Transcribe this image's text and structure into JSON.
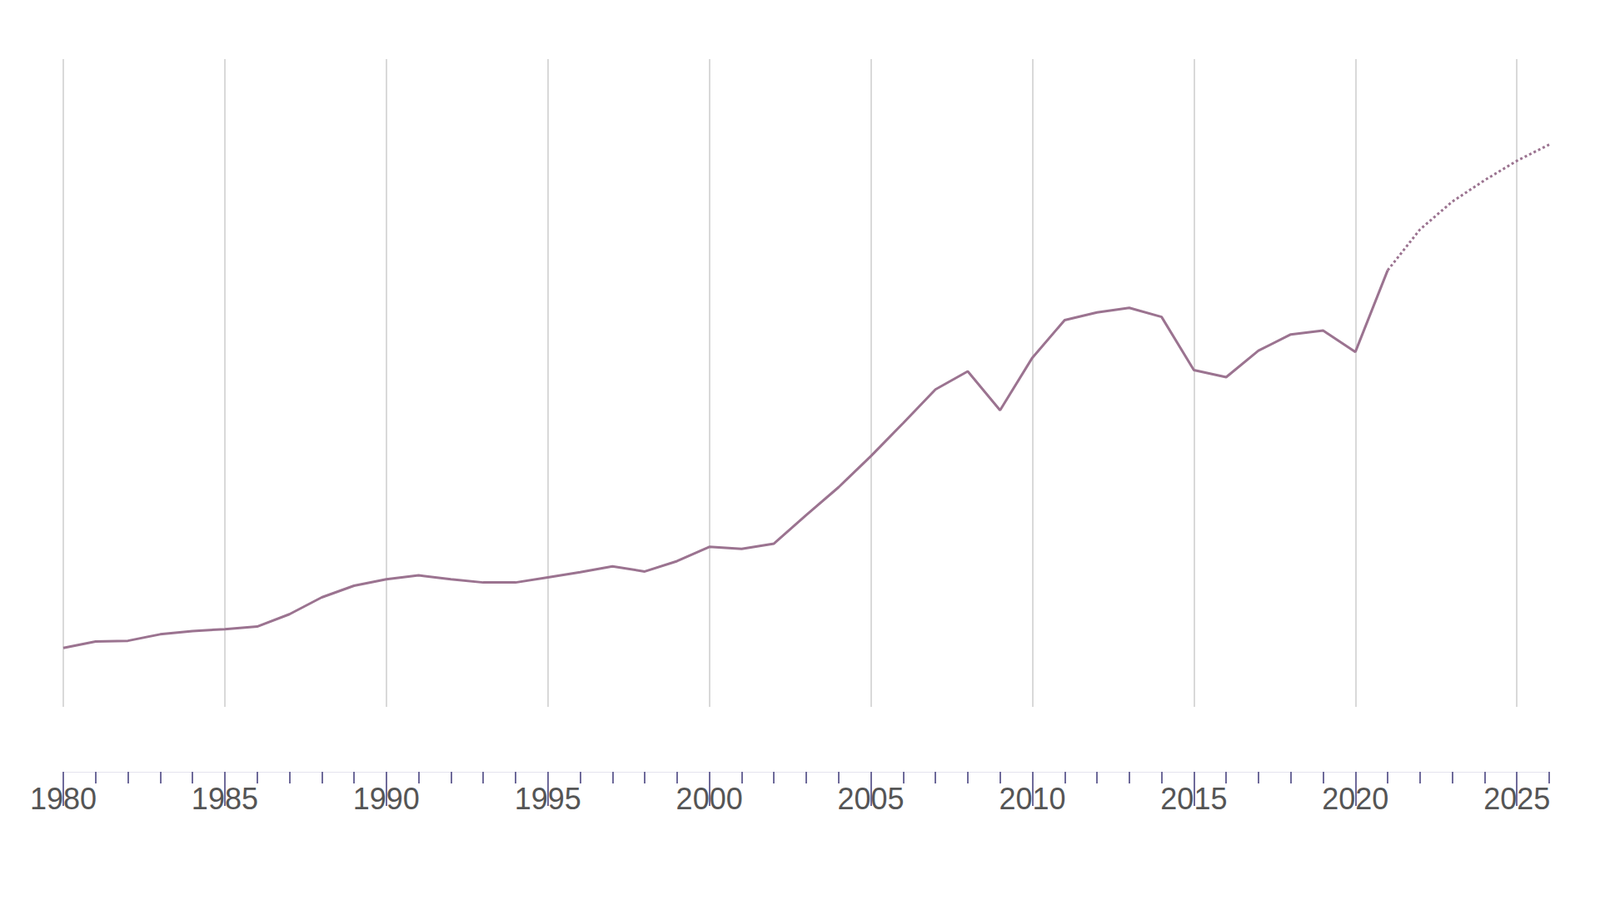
{
  "chart_data": {
    "type": "line",
    "x": [
      1980,
      1981,
      1982,
      1983,
      1984,
      1985,
      1986,
      1987,
      1988,
      1989,
      1990,
      1991,
      1992,
      1993,
      1994,
      1995,
      1996,
      1997,
      1998,
      1999,
      2000,
      2001,
      2002,
      2003,
      2004,
      2005,
      2006,
      2007,
      2008,
      2009,
      2010,
      2011,
      2012,
      2013,
      2014,
      2015,
      2016,
      2017,
      2018,
      2019,
      2020,
      2021,
      2022,
      2023,
      2024,
      2025,
      2026
    ],
    "series": [
      {
        "color": "#9b7390",
        "line_style": "solid",
        "values": [
          9.1,
          10.1,
          10.2,
          11.2,
          11.7,
          12.0,
          12.4,
          14.3,
          16.9,
          18.7,
          19.7,
          20.3,
          19.7,
          19.2,
          19.2,
          20.0,
          20.8,
          21.7,
          20.9,
          22.5,
          24.7,
          24.4,
          25.2,
          29.6,
          33.9,
          38.7,
          43.8,
          49.0,
          51.8,
          45.8,
          53.9,
          59.7,
          60.9,
          61.6,
          60.2,
          52.0,
          50.9,
          55.0,
          57.5,
          58.1,
          54.8,
          67.4,
          null,
          null,
          null,
          null,
          null
        ]
      },
      {
        "color": "#9b7390",
        "line_style": "dotted",
        "values": [
          null,
          null,
          null,
          null,
          null,
          null,
          null,
          null,
          null,
          null,
          null,
          null,
          null,
          null,
          null,
          null,
          null,
          null,
          null,
          null,
          null,
          null,
          null,
          null,
          null,
          null,
          null,
          null,
          null,
          null,
          null,
          null,
          null,
          null,
          null,
          null,
          null,
          null,
          null,
          null,
          null,
          67.4,
          73.7,
          78.0,
          81.3,
          84.3,
          86.8
        ]
      }
    ],
    "xlim": [
      1980,
      2026
    ],
    "xticks": [
      1980,
      1985,
      1990,
      1995,
      2000,
      2005,
      2010,
      2015,
      2020,
      2025
    ],
    "ylim": [
      0,
      100
    ],
    "grid": "x",
    "tick_labels": "x"
  }
}
